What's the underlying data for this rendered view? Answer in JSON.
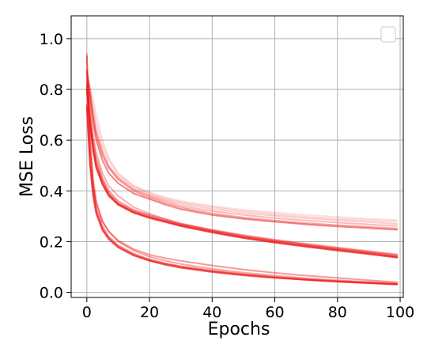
{
  "chart_data": {
    "type": "line",
    "xlabel": "Epochs",
    "ylabel": "MSE Loss",
    "xlim": [
      -5,
      101
    ],
    "ylim": [
      -0.02,
      1.09
    ],
    "x_ticks": [
      "0",
      "20",
      "40",
      "60",
      "80",
      "100"
    ],
    "y_ticks": [
      "0.0",
      "0.2",
      "0.4",
      "0.6",
      "0.8",
      "1.0"
    ],
    "grid": true,
    "legend": "top-right, empty",
    "line_color": "#ee1c1c",
    "x": [
      0,
      1,
      2,
      3,
      5,
      7,
      10,
      15,
      20,
      25,
      30,
      40,
      50,
      60,
      70,
      80,
      90,
      99
    ],
    "series": [
      {
        "opacity": 0.15,
        "values": [
          0.86,
          0.82,
          0.76,
          0.7,
          0.6,
          0.53,
          0.47,
          0.42,
          0.395,
          0.375,
          0.36,
          0.34,
          0.325,
          0.315,
          0.305,
          0.297,
          0.29,
          0.285
        ]
      },
      {
        "opacity": 0.18,
        "values": [
          0.85,
          0.8,
          0.73,
          0.67,
          0.58,
          0.52,
          0.465,
          0.418,
          0.39,
          0.37,
          0.355,
          0.335,
          0.32,
          0.308,
          0.298,
          0.29,
          0.284,
          0.278
        ]
      },
      {
        "opacity": 0.22,
        "values": [
          0.86,
          0.79,
          0.71,
          0.64,
          0.56,
          0.5,
          0.455,
          0.41,
          0.385,
          0.365,
          0.35,
          0.328,
          0.313,
          0.302,
          0.292,
          0.284,
          0.277,
          0.27
        ]
      },
      {
        "opacity": 0.3,
        "values": [
          0.87,
          0.79,
          0.7,
          0.63,
          0.55,
          0.495,
          0.45,
          0.405,
          0.38,
          0.36,
          0.342,
          0.32,
          0.305,
          0.293,
          0.283,
          0.275,
          0.268,
          0.262
        ]
      },
      {
        "opacity": 0.4,
        "values": [
          0.88,
          0.78,
          0.69,
          0.62,
          0.54,
          0.49,
          0.445,
          0.4,
          0.375,
          0.353,
          0.335,
          0.311,
          0.295,
          0.283,
          0.273,
          0.265,
          0.258,
          0.252
        ]
      },
      {
        "opacity": 0.55,
        "values": [
          0.87,
          0.76,
          0.67,
          0.6,
          0.52,
          0.47,
          0.43,
          0.39,
          0.368,
          0.346,
          0.328,
          0.305,
          0.29,
          0.278,
          0.268,
          0.26,
          0.253,
          0.247
        ]
      },
      {
        "opacity": 0.35,
        "values": [
          0.84,
          0.72,
          0.62,
          0.55,
          0.47,
          0.42,
          0.38,
          0.335,
          0.31,
          0.29,
          0.272,
          0.247,
          0.226,
          0.208,
          0.192,
          0.177,
          0.163,
          0.15
        ]
      },
      {
        "opacity": 0.45,
        "values": [
          0.83,
          0.7,
          0.6,
          0.53,
          0.45,
          0.4,
          0.36,
          0.325,
          0.305,
          0.287,
          0.27,
          0.245,
          0.223,
          0.205,
          0.189,
          0.174,
          0.16,
          0.147
        ]
      },
      {
        "opacity": 0.55,
        "values": [
          0.82,
          0.68,
          0.58,
          0.51,
          0.44,
          0.39,
          0.352,
          0.32,
          0.3,
          0.283,
          0.267,
          0.242,
          0.22,
          0.202,
          0.186,
          0.171,
          0.157,
          0.143
        ]
      },
      {
        "opacity": 0.65,
        "values": [
          0.81,
          0.67,
          0.57,
          0.5,
          0.43,
          0.385,
          0.348,
          0.316,
          0.296,
          0.28,
          0.264,
          0.239,
          0.217,
          0.199,
          0.183,
          0.168,
          0.154,
          0.14
        ]
      },
      {
        "opacity": 0.75,
        "values": [
          0.8,
          0.66,
          0.56,
          0.49,
          0.425,
          0.38,
          0.345,
          0.313,
          0.293,
          0.277,
          0.261,
          0.236,
          0.214,
          0.196,
          0.18,
          0.165,
          0.151,
          0.137
        ]
      },
      {
        "opacity": 0.4,
        "values": [
          0.94,
          0.62,
          0.45,
          0.36,
          0.28,
          0.24,
          0.2,
          0.165,
          0.14,
          0.125,
          0.112,
          0.093,
          0.078,
          0.066,
          0.056,
          0.048,
          0.041,
          0.035
        ]
      },
      {
        "opacity": 0.5,
        "values": [
          0.93,
          0.58,
          0.42,
          0.33,
          0.26,
          0.22,
          0.185,
          0.152,
          0.13,
          0.115,
          0.103,
          0.086,
          0.072,
          0.061,
          0.052,
          0.045,
          0.039,
          0.034
        ]
      },
      {
        "opacity": 0.6,
        "values": [
          0.74,
          0.52,
          0.4,
          0.32,
          0.25,
          0.213,
          0.18,
          0.148,
          0.127,
          0.112,
          0.1,
          0.083,
          0.07,
          0.059,
          0.05,
          0.043,
          0.037,
          0.032
        ]
      },
      {
        "opacity": 0.7,
        "values": [
          0.73,
          0.5,
          0.38,
          0.31,
          0.245,
          0.21,
          0.177,
          0.145,
          0.124,
          0.109,
          0.097,
          0.08,
          0.067,
          0.057,
          0.049,
          0.042,
          0.036,
          0.031
        ]
      },
      {
        "opacity": 0.45,
        "values": [
          0.8,
          0.56,
          0.43,
          0.35,
          0.28,
          0.24,
          0.205,
          0.17,
          0.148,
          0.135,
          0.124,
          0.106,
          0.09,
          0.077,
          0.066,
          0.057,
          0.048,
          0.04
        ]
      }
    ]
  }
}
